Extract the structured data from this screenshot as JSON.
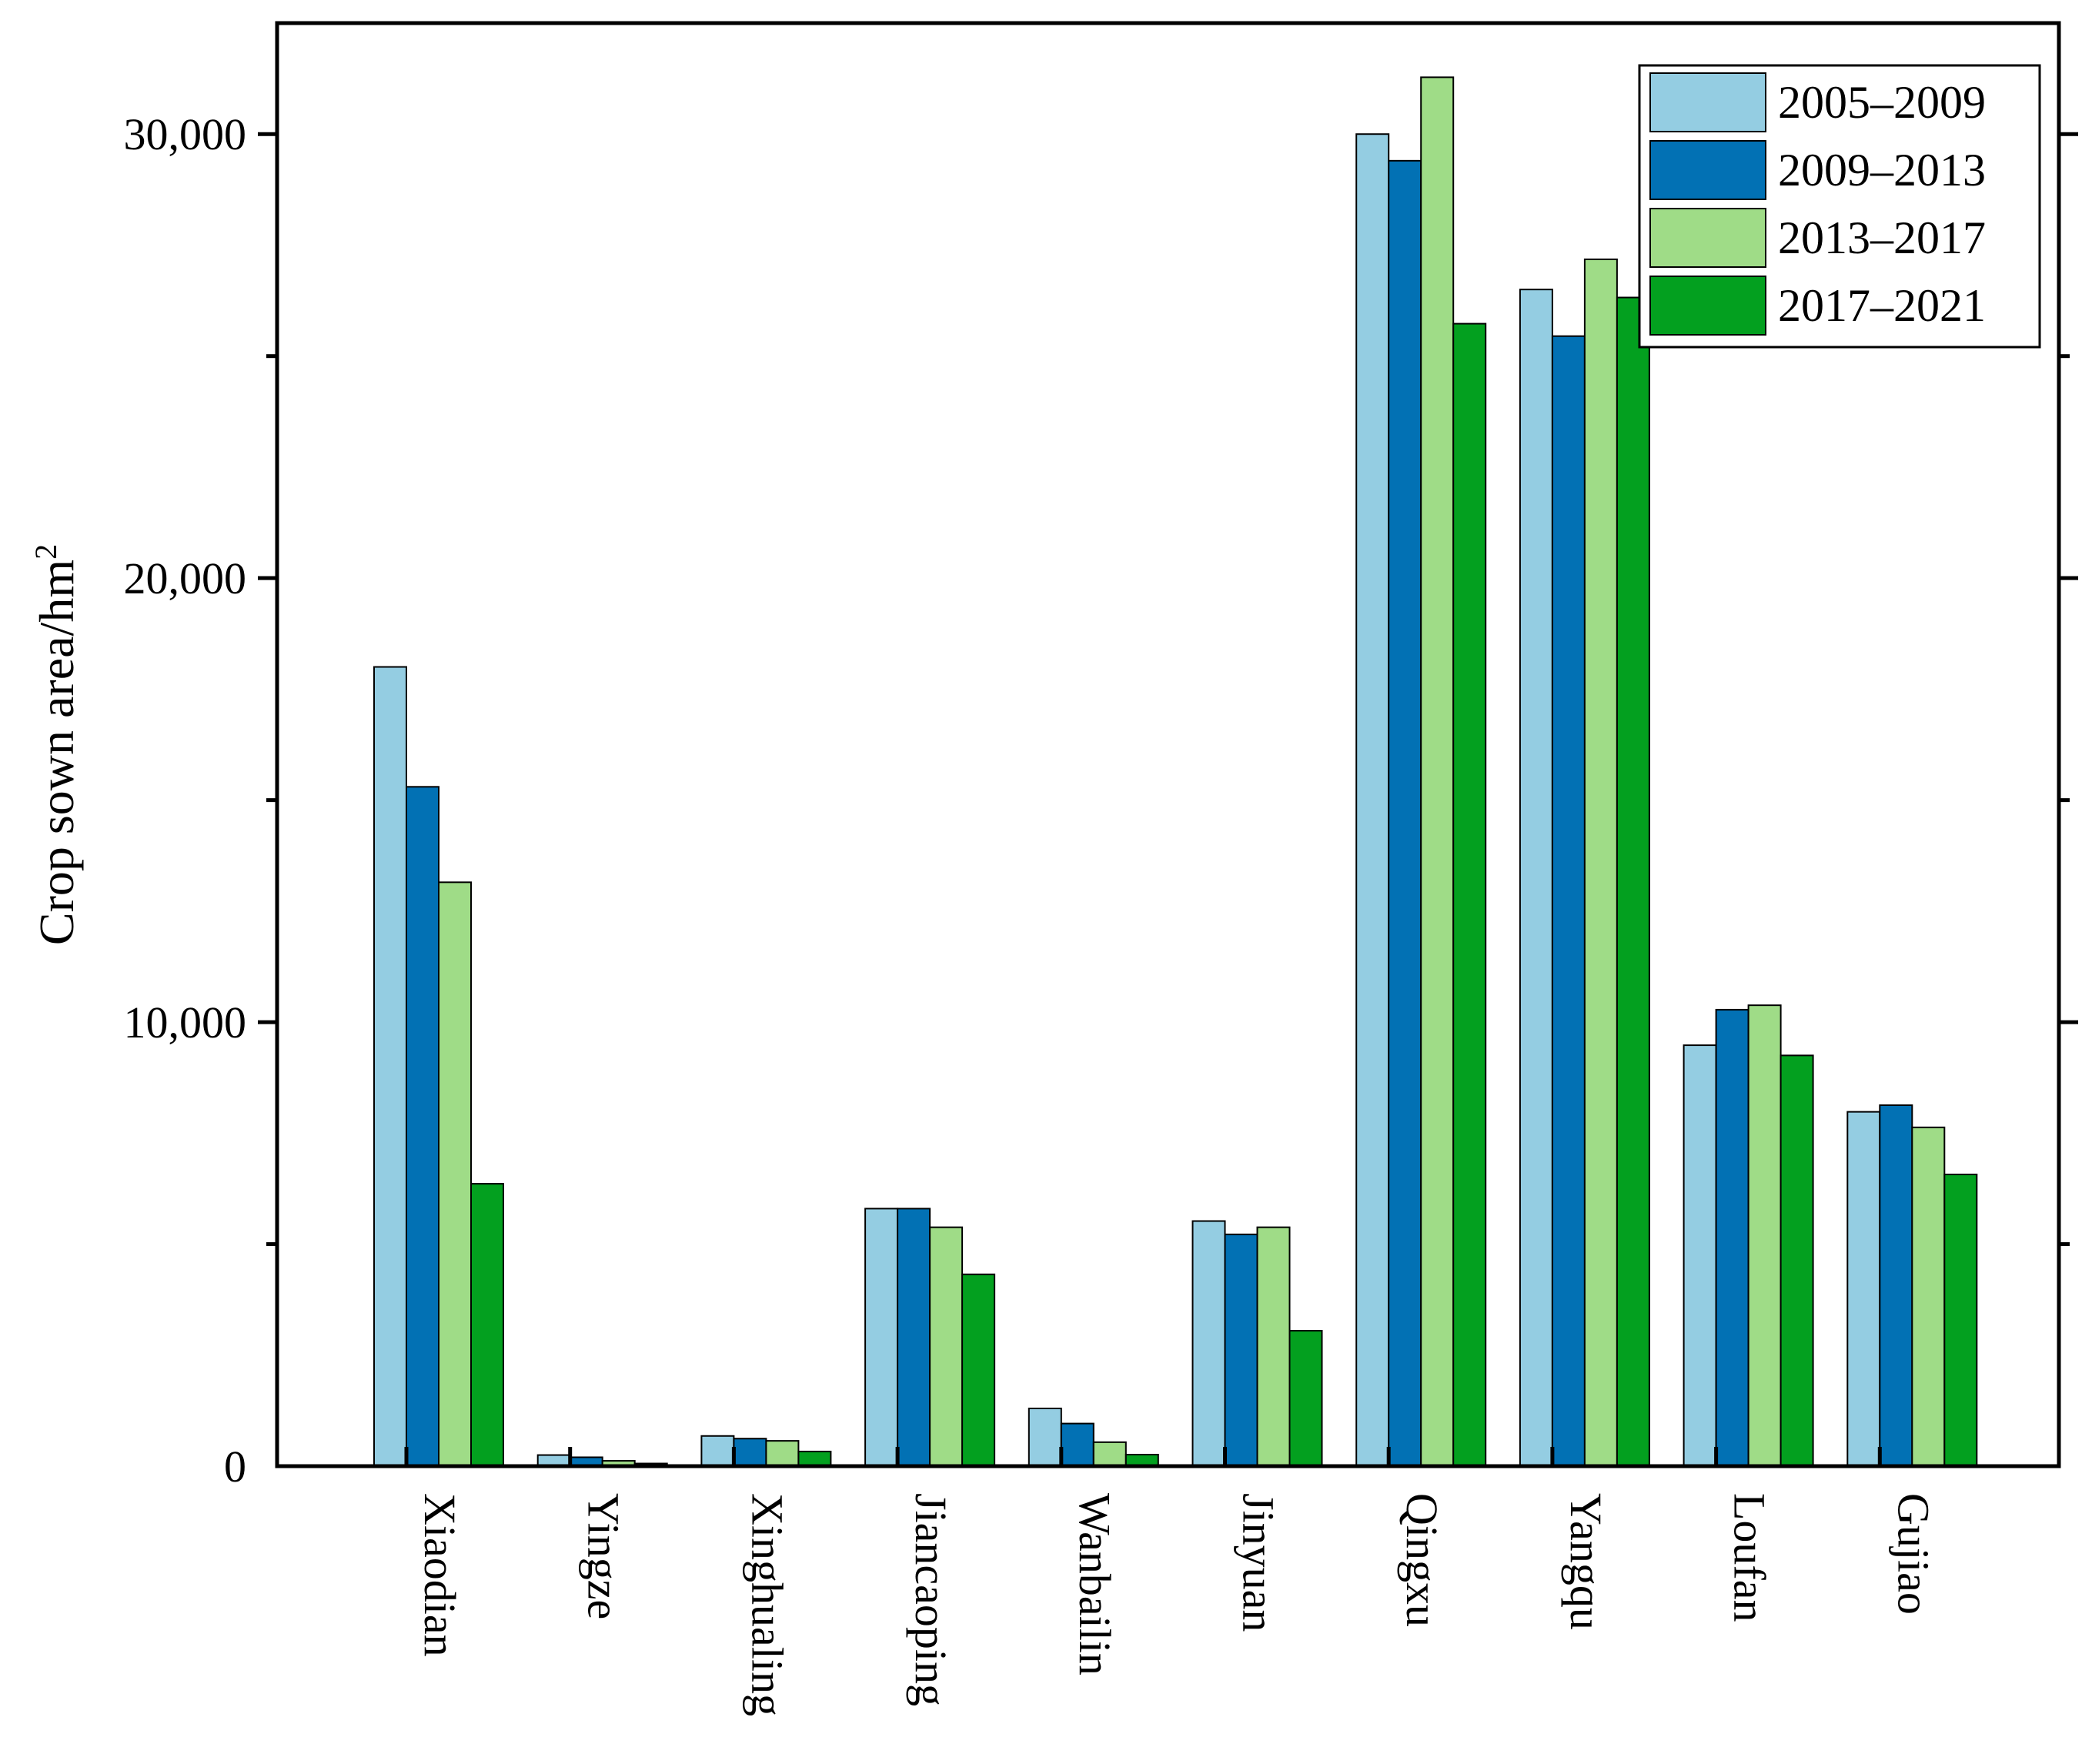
{
  "chart_data": {
    "type": "bar",
    "title": "",
    "xlabel": "",
    "ylabel": "Crop sown area/hm",
    "ylabel_superscript": "2",
    "ylim": [
      0,
      32500
    ],
    "yticks": [
      0,
      10000,
      20000,
      30000
    ],
    "ytick_labels": [
      "0",
      "10,000",
      "20,000",
      "30,000"
    ],
    "legend_position": "top-right",
    "categories": [
      "Xiaodian",
      "Yingze",
      "Xinghualing",
      "Jiancaoping",
      "Wanbailin",
      "Jinyuan",
      "Qingxu",
      "Yangqu",
      "Loufan",
      "Gujiao"
    ],
    "series": [
      {
        "name": "2005–2009",
        "color": "#94cde2",
        "values": [
          18000,
          250,
          680,
          5800,
          1300,
          5520,
          30000,
          26500,
          9480,
          7980
        ]
      },
      {
        "name": "2009–2013",
        "color": "#0271b4",
        "values": [
          15300,
          200,
          620,
          5800,
          960,
          5220,
          29400,
          25450,
          10280,
          8130
        ]
      },
      {
        "name": "2013–2017",
        "color": "#9fdc87",
        "values": [
          13150,
          120,
          570,
          5380,
          540,
          5380,
          31280,
          27180,
          10380,
          7630
        ]
      },
      {
        "name": "2017–2021",
        "color": "#03a01f",
        "values": [
          6360,
          60,
          330,
          4320,
          260,
          3050,
          25730,
          26320,
          9250,
          6570
        ]
      }
    ]
  }
}
